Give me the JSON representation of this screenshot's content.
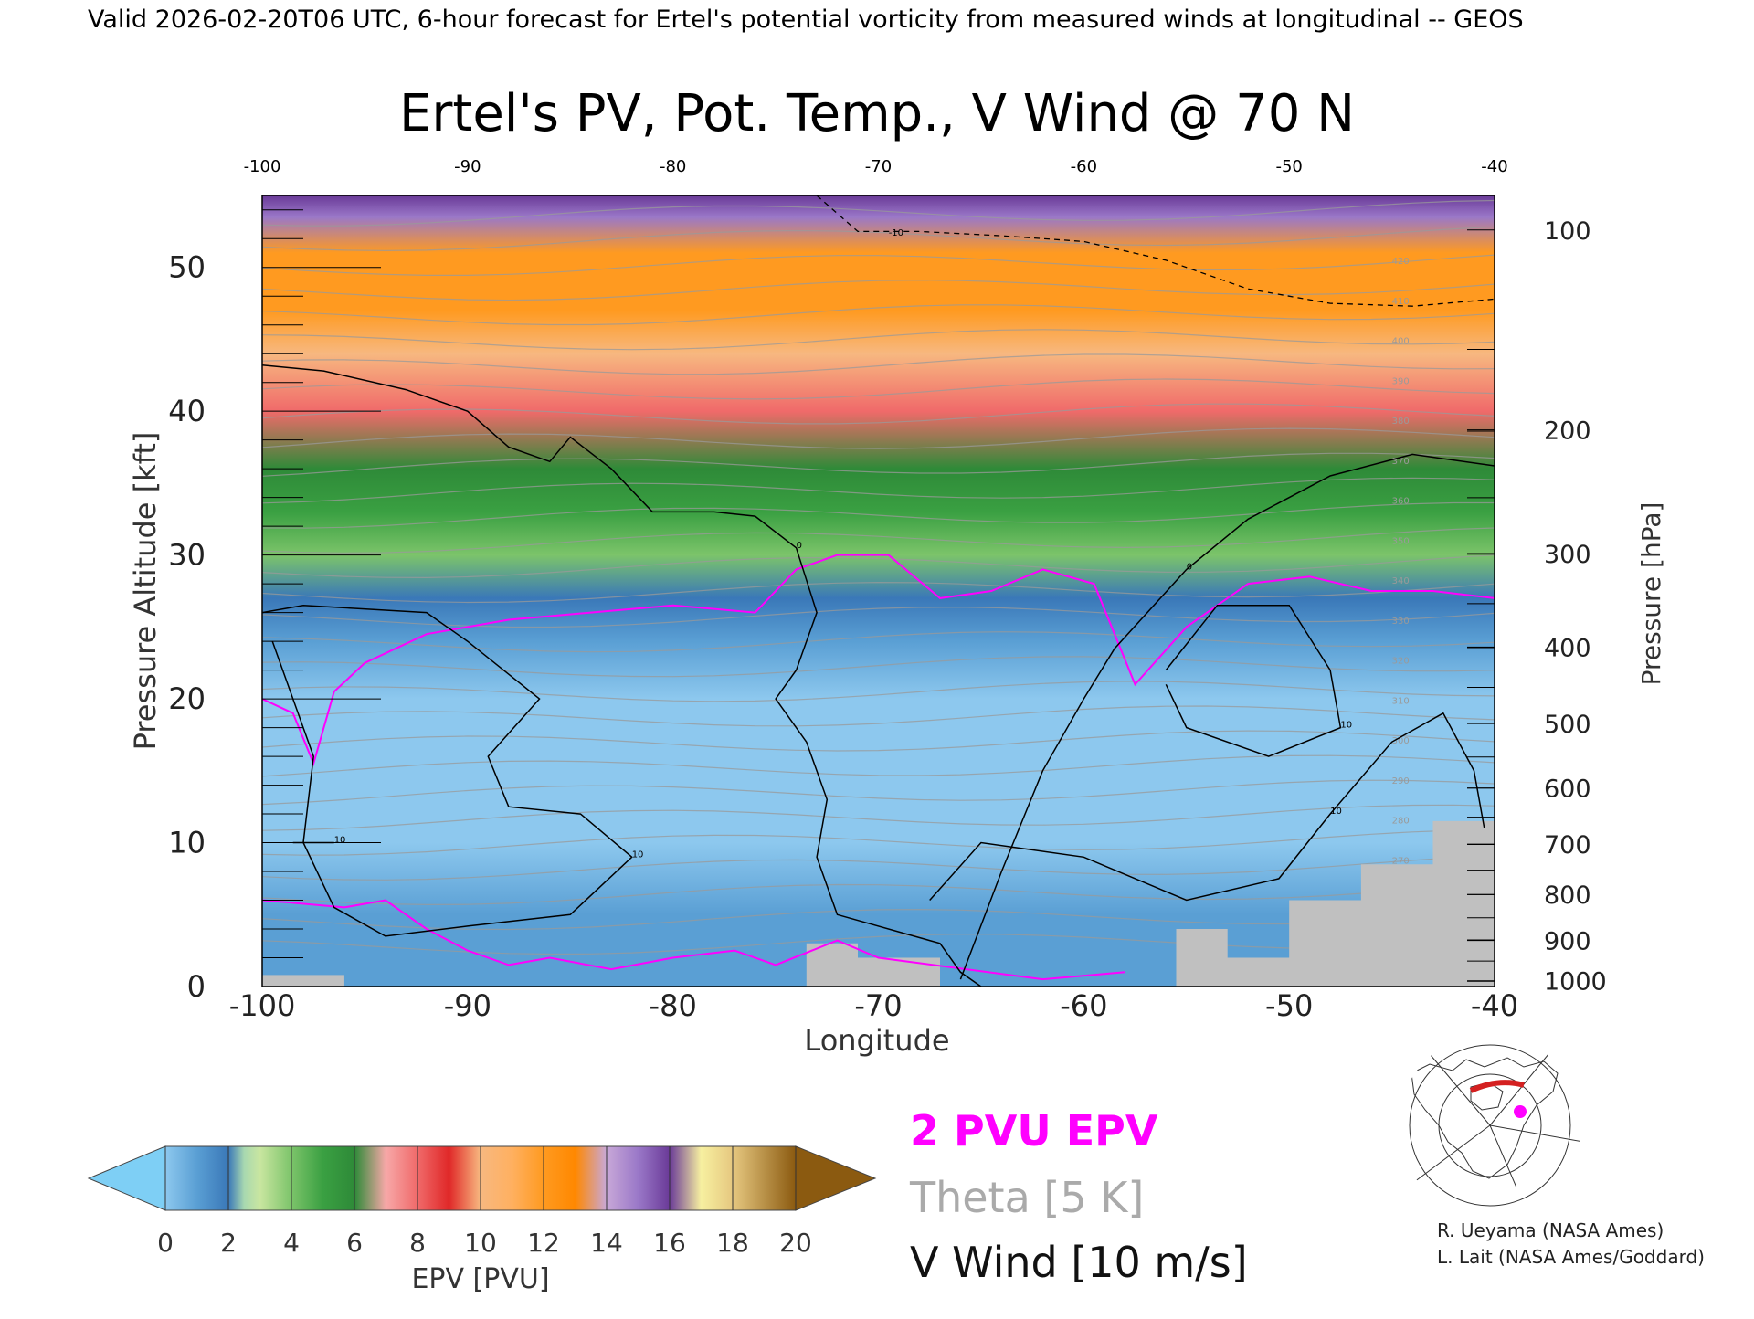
{
  "header": {
    "valid_line": "Valid 2026-02-20T06 UTC, 6-hour forecast for Ertel's potential vorticity from measured winds at longitudinal -- GEOS"
  },
  "chart_data": {
    "type": "heatmap",
    "title": "Ertel's PV, Pot. Temp., V Wind @ 70 N",
    "xlabel": "Longitude",
    "ylabel_left": "Pressure Altitude [kft]",
    "ylabel_right": "Pressure [hPa]",
    "xlim": [
      -100,
      -40
    ],
    "ylim": [
      0,
      55
    ],
    "x_ticks": [
      "-100",
      "-90",
      "-80",
      "-70",
      "-60",
      "-50",
      "-40"
    ],
    "y_ticks_left": [
      "0",
      "10",
      "20",
      "30",
      "40",
      "50"
    ],
    "y_ticks_right": [
      {
        "label": "100",
        "kft": 52.6
      },
      {
        "label": "200",
        "kft": 38.7
      },
      {
        "label": "300",
        "kft": 30.1
      },
      {
        "label": "400",
        "kft": 23.6
      },
      {
        "label": "500",
        "kft": 18.3
      },
      {
        "label": "600",
        "kft": 13.8
      },
      {
        "label": "700",
        "kft": 9.9
      },
      {
        "label": "800",
        "kft": 6.4
      },
      {
        "label": "900",
        "kft": 3.2
      },
      {
        "label": "1000",
        "kft": 0.4
      }
    ],
    "epv_bands_kft": [
      {
        "kft": 0,
        "pvu": 1.5
      },
      {
        "kft": 5,
        "pvu": 1.5
      },
      {
        "kft": 10,
        "pvu": 1.0
      },
      {
        "kft": 15,
        "pvu": 0.9
      },
      {
        "kft": 20,
        "pvu": 0.8
      },
      {
        "kft": 24,
        "pvu": 1.2
      },
      {
        "kft": 27,
        "pvu": 2.5
      },
      {
        "kft": 30,
        "pvu": 4.5
      },
      {
        "kft": 33,
        "pvu": 5.5
      },
      {
        "kft": 36,
        "pvu": 7.0
      },
      {
        "kft": 40,
        "pvu": 8.8
      },
      {
        "kft": 44,
        "pvu": 10.5
      },
      {
        "kft": 47,
        "pvu": 12.5
      },
      {
        "kft": 51,
        "pvu": 13.0
      },
      {
        "kft": 53.5,
        "pvu": 15.5
      },
      {
        "kft": 55,
        "pvu": 17.0
      }
    ],
    "pv2_contour": [
      [
        -100,
        20
      ],
      [
        -98.5,
        19
      ],
      [
        -97.5,
        15.5
      ],
      [
        -96.5,
        20.5
      ],
      [
        -95,
        22.5
      ],
      [
        -92,
        24.5
      ],
      [
        -88,
        25.5
      ],
      [
        -84,
        26
      ],
      [
        -80,
        26.5
      ],
      [
        -76,
        26
      ],
      [
        -74,
        29
      ],
      [
        -72,
        30
      ],
      [
        -69.5,
        30
      ],
      [
        -67,
        27
      ],
      [
        -64.5,
        27.5
      ],
      [
        -62,
        29
      ],
      [
        -59.5,
        28
      ],
      [
        -57.5,
        21
      ],
      [
        -55,
        25
      ],
      [
        -52,
        28
      ],
      [
        -49,
        28.5
      ],
      [
        -46,
        27.5
      ],
      [
        -43,
        27.5
      ],
      [
        -40,
        27
      ]
    ],
    "pv2_low_contour": [
      [
        -100,
        6
      ],
      [
        -96,
        5.5
      ],
      [
        -94,
        6
      ],
      [
        -92,
        4
      ],
      [
        -90,
        2.5
      ],
      [
        -88,
        1.5
      ],
      [
        -86,
        2
      ],
      [
        -83,
        1.2
      ],
      [
        -80,
        2
      ],
      [
        -77,
        2.5
      ],
      [
        -75,
        1.5
      ],
      [
        -72,
        3.2
      ],
      [
        -70,
        2
      ],
      [
        -62,
        0.5
      ],
      [
        -58,
        1
      ]
    ],
    "v_wind_contours": [
      {
        "label": "0",
        "points": [
          [
            -100,
            43.2
          ],
          [
            -97,
            42.8
          ],
          [
            -93,
            41.5
          ],
          [
            -90,
            40
          ],
          [
            -88,
            37.5
          ],
          [
            -86,
            36.5
          ],
          [
            -85,
            38.2
          ],
          [
            -83,
            36
          ],
          [
            -81,
            33
          ],
          [
            -78,
            33
          ],
          [
            -76,
            32.7
          ],
          [
            -74,
            30.5
          ],
          [
            -73,
            26
          ],
          [
            -74,
            22
          ],
          [
            -75,
            20
          ],
          [
            -73.5,
            17
          ],
          [
            -72.5,
            13
          ],
          [
            -73,
            9
          ],
          [
            -72,
            5
          ],
          [
            -67,
            3
          ],
          [
            -66,
            1
          ],
          [
            -65,
            0
          ]
        ]
      },
      {
        "label": "0",
        "points": [
          [
            -66,
            0.5
          ],
          [
            -64,
            8
          ],
          [
            -62,
            15
          ],
          [
            -60,
            20
          ],
          [
            -58.5,
            23.5
          ],
          [
            -55,
            29
          ],
          [
            -52,
            32.5
          ],
          [
            -48,
            35.5
          ],
          [
            -44,
            37
          ],
          [
            -40,
            36.2
          ]
        ]
      },
      {
        "label": "10",
        "points": [
          [
            -100,
            26
          ],
          [
            -98,
            26.5
          ],
          [
            -92,
            26
          ],
          [
            -90,
            24
          ],
          [
            -86.5,
            20
          ],
          [
            -89,
            16
          ],
          [
            -88,
            12.5
          ],
          [
            -84.5,
            12
          ],
          [
            -82,
            9
          ],
          [
            -85,
            5
          ],
          [
            -90,
            4.2
          ],
          [
            -94,
            3.5
          ],
          [
            -96.5,
            5.5
          ],
          [
            -98,
            10
          ],
          [
            -97.5,
            16
          ],
          [
            -98.5,
            20
          ],
          [
            -99.5,
            24
          ]
        ]
      },
      {
        "label": "10",
        "points": [
          [
            -67.5,
            6
          ],
          [
            -65,
            10
          ],
          [
            -60,
            9
          ],
          [
            -55,
            6
          ],
          [
            -50.5,
            7.5
          ],
          [
            -48,
            12
          ],
          [
            -45,
            17
          ],
          [
            -42.5,
            19
          ],
          [
            -41,
            15
          ],
          [
            -40.5,
            11
          ]
        ]
      },
      {
        "label": "10",
        "points": [
          [
            -56,
            22
          ],
          [
            -53.5,
            26.5
          ],
          [
            -50,
            26.5
          ],
          [
            -48,
            22
          ],
          [
            -47.5,
            18
          ],
          [
            -51,
            16
          ],
          [
            -55,
            18
          ],
          [
            -56,
            21
          ]
        ]
      },
      {
        "label": "10",
        "points": [
          [
            -98.5,
            10
          ],
          [
            -96.5,
            10
          ]
        ]
      }
    ],
    "v_wind_neg_contour": {
      "label": "-10",
      "points": [
        [
          -73,
          55
        ],
        [
          -71,
          52.5
        ],
        [
          -68,
          52.5
        ],
        [
          -64,
          52.2
        ],
        [
          -60,
          51.8
        ],
        [
          -56,
          50.5
        ],
        [
          -52,
          48.5
        ],
        [
          -48,
          47.5
        ],
        [
          -44,
          47.3
        ],
        [
          -40,
          47.8
        ]
      ]
    },
    "theta_label_values": [
      "250",
      "260",
      "270",
      "280",
      "290",
      "300",
      "310",
      "320",
      "330",
      "340",
      "350",
      "360",
      "370",
      "380",
      "390",
      "400",
      "410",
      "420"
    ],
    "legend": {
      "pv_label": "2 PVU EPV",
      "theta_label": "Theta [5 K]",
      "wind_label": "V Wind [10 m/s]"
    },
    "colorbar": {
      "label": "EPV [PVU]",
      "ticks": [
        "0",
        "2",
        "4",
        "6",
        "8",
        "10",
        "12",
        "14",
        "16",
        "18",
        "20"
      ]
    }
  },
  "credits": {
    "line1": "R. Ueyama (NASA Ames)",
    "line2": "L. Lait (NASA Ames/Goddard)"
  },
  "colors": {
    "pv_contour": "#ff00ff",
    "theta": "#9a9a9a",
    "wind": "#000000",
    "terrain": "#c0c0c0"
  }
}
